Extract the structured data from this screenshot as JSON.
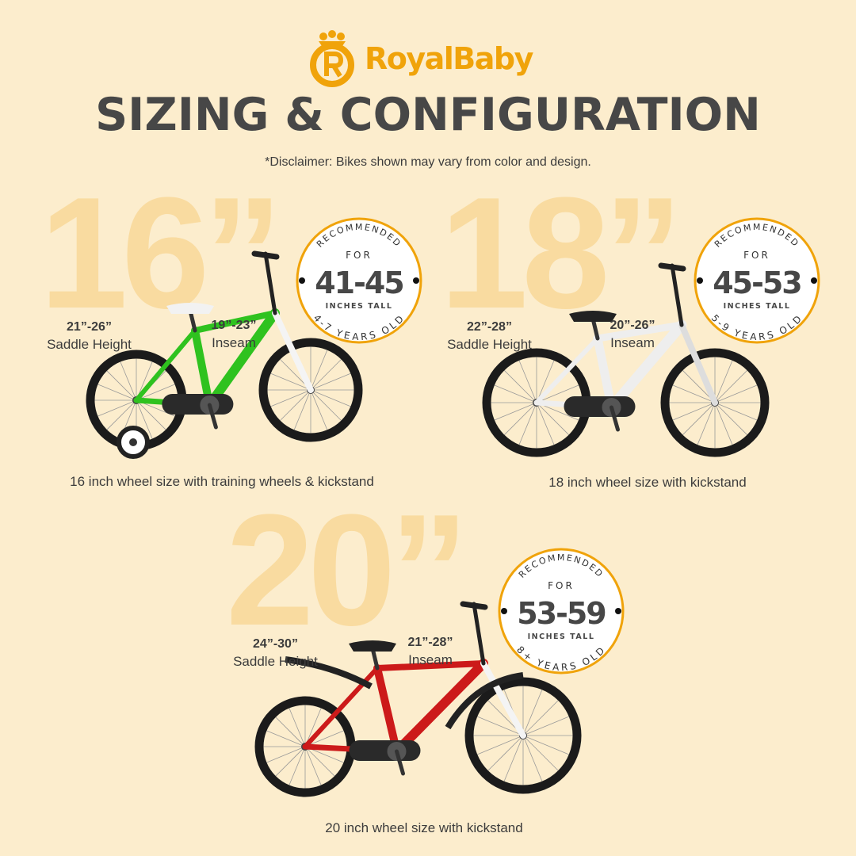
{
  "brand": {
    "name": "RoyalBaby",
    "color": "#f0a30a"
  },
  "title": "SIZING & CONFIGURATION",
  "disclaimer": "*Disclaimer: Bikes shown may vary from color and design.",
  "bikes": [
    {
      "size": "16”",
      "inseam_range": "19”-23”",
      "inseam_label": "Inseam",
      "saddle_range": "21”-26”",
      "saddle_label": "Saddle Height",
      "badge": {
        "top": "RECOMMENDED",
        "for": "FOR",
        "range": "41-45",
        "unit": "INCHES TALL",
        "age": "4-7 YEARS OLD"
      },
      "caption": "16 inch wheel size with training wheels & kickstand",
      "frame_color": "#2fc21f",
      "training_wheels": true
    },
    {
      "size": "18”",
      "inseam_range": "20”-26”",
      "inseam_label": "Inseam",
      "saddle_range": "22”-28”",
      "saddle_label": "Saddle Height",
      "badge": {
        "top": "RECOMMENDED",
        "for": "FOR",
        "range": "45-53",
        "unit": "INCHES TALL",
        "age": "5-9 YEARS OLD"
      },
      "caption": "18 inch wheel size with kickstand",
      "frame_color": "#eeeeee",
      "training_wheels": false
    },
    {
      "size": "20”",
      "inseam_range": "21”-28”",
      "inseam_label": "Inseam",
      "saddle_range": "24”-30”",
      "saddle_label": "Saddle Height",
      "badge": {
        "top": "RECOMMENDED",
        "for": "FOR",
        "range": "53-59",
        "unit": "INCHES TALL",
        "age": "8+ YEARS OLD"
      },
      "caption": "20 inch wheel size with kickstand",
      "frame_color": "#cc1a1a",
      "training_wheels": false
    }
  ]
}
